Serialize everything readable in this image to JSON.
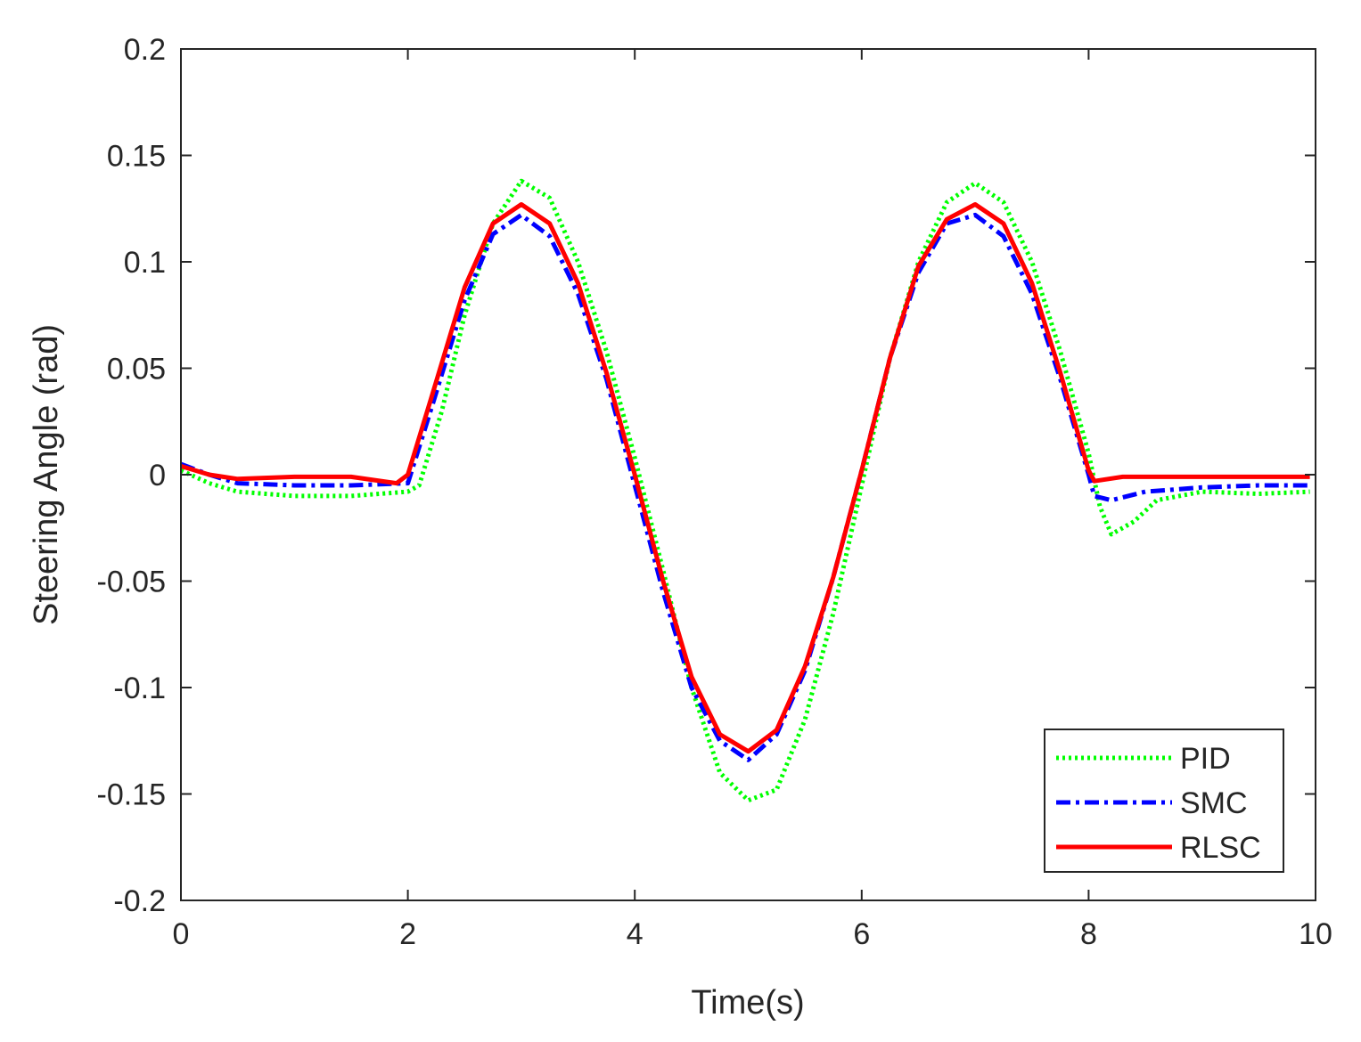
{
  "chart_data": {
    "type": "line",
    "title": "",
    "xlabel": "Time(s)",
    "ylabel": "Steering Angle (rad)",
    "xlim": [
      0,
      10
    ],
    "ylim": [
      -0.2,
      0.2
    ],
    "xticks": [
      0,
      2,
      4,
      6,
      8,
      10
    ],
    "xtick_labels": [
      "0",
      "2",
      "4",
      "6",
      "8",
      "10"
    ],
    "yticks": [
      0.2,
      0.15,
      0.1,
      0.05,
      0,
      -0.05,
      -0.1,
      -0.15,
      -0.2
    ],
    "ytick_labels": [
      "0.2",
      "0.15",
      "0.1",
      "0.05",
      "0",
      "-0.05",
      "-0.1",
      "-0.15",
      "-0.2"
    ],
    "grid": false,
    "legend_position": "bottom-right",
    "series": [
      {
        "name": "PID",
        "color": "#00ff00",
        "style": "dotted",
        "x": [
          0,
          0.25,
          0.5,
          1,
          1.5,
          2,
          2.1,
          2.3,
          2.5,
          2.75,
          3,
          3.25,
          3.5,
          3.75,
          4,
          4.25,
          4.5,
          4.75,
          5,
          5.25,
          5.5,
          5.75,
          6,
          6.25,
          6.5,
          6.75,
          7,
          7.25,
          7.5,
          7.75,
          8,
          8.1,
          8.2,
          8.4,
          8.6,
          9,
          9.5,
          9.95
        ],
        "values": [
          0.002,
          -0.004,
          -0.008,
          -0.01,
          -0.01,
          -0.008,
          -0.005,
          0.03,
          0.075,
          0.118,
          0.138,
          0.13,
          0.1,
          0.058,
          0.008,
          -0.045,
          -0.1,
          -0.14,
          -0.153,
          -0.148,
          -0.115,
          -0.065,
          -0.005,
          0.055,
          0.1,
          0.128,
          0.137,
          0.128,
          0.1,
          0.058,
          0.01,
          -0.015,
          -0.028,
          -0.022,
          -0.012,
          -0.008,
          -0.009,
          -0.008
        ]
      },
      {
        "name": "SMC",
        "color": "#0000ff",
        "style": "dash-dot",
        "x": [
          0,
          0.25,
          0.5,
          1,
          1.5,
          2,
          2.2,
          2.5,
          2.75,
          3,
          3.25,
          3.5,
          3.75,
          4,
          4.25,
          4.5,
          4.75,
          5,
          5.25,
          5.5,
          5.75,
          6,
          6.25,
          6.5,
          6.75,
          7,
          7.25,
          7.5,
          7.75,
          8,
          8.05,
          8.2,
          8.5,
          9,
          9.5,
          9.95
        ],
        "values": [
          0.005,
          0,
          -0.004,
          -0.005,
          -0.005,
          -0.004,
          0.03,
          0.082,
          0.113,
          0.122,
          0.112,
          0.085,
          0.045,
          -0.005,
          -0.055,
          -0.1,
          -0.125,
          -0.134,
          -0.122,
          -0.092,
          -0.048,
          0.002,
          0.055,
          0.095,
          0.118,
          0.122,
          0.112,
          0.085,
          0.045,
          0,
          -0.01,
          -0.012,
          -0.008,
          -0.006,
          -0.005,
          -0.005
        ]
      },
      {
        "name": "RLSC",
        "color": "#ff0000",
        "style": "solid",
        "x": [
          0,
          0.25,
          0.5,
          1,
          1.5,
          1.9,
          2,
          2.2,
          2.5,
          2.75,
          3,
          3.25,
          3.5,
          3.75,
          4,
          4.25,
          4.5,
          4.75,
          5,
          5.25,
          5.5,
          5.75,
          6,
          6.25,
          6.5,
          6.75,
          7,
          7.25,
          7.5,
          7.75,
          8,
          8.05,
          8.3,
          9,
          9.95
        ],
        "values": [
          0.004,
          0,
          -0.002,
          -0.001,
          -0.001,
          -0.004,
          0,
          0.035,
          0.088,
          0.118,
          0.127,
          0.118,
          0.09,
          0.048,
          0,
          -0.05,
          -0.095,
          -0.122,
          -0.13,
          -0.12,
          -0.09,
          -0.048,
          0.002,
          0.055,
          0.098,
          0.12,
          0.127,
          0.118,
          0.09,
          0.048,
          0.002,
          -0.003,
          -0.001,
          -0.001,
          -0.001
        ]
      }
    ]
  }
}
